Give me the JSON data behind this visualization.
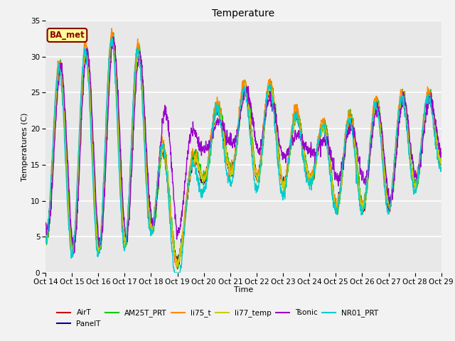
{
  "title": "Temperature",
  "xlabel": "Time",
  "ylabel": "Temperatures (C)",
  "ylim": [
    0,
    35
  ],
  "xlim": [
    0,
    15
  ],
  "x_tick_labels": [
    "Oct 14",
    "Oct 15",
    "Oct 16",
    "Oct 17",
    "Oct 18",
    "Oct 19",
    "Oct 20",
    "Oct 21",
    "Oct 22",
    "Oct 23",
    "Oct 24",
    "Oct 25",
    "Oct 26",
    "Oct 27",
    "Oct 28",
    "Oct 29"
  ],
  "series": {
    "AirT": {
      "color": "#cc0000",
      "lw": 1.0
    },
    "PanelT": {
      "color": "#000099",
      "lw": 1.0
    },
    "AM25T_PRT": {
      "color": "#00cc00",
      "lw": 1.0
    },
    "li75_t": {
      "color": "#ff8800",
      "lw": 1.0
    },
    "li77_temp": {
      "color": "#cccc00",
      "lw": 1.0
    },
    "Tsonic": {
      "color": "#9900cc",
      "lw": 1.0
    },
    "NR01_PRT": {
      "color": "#00cccc",
      "lw": 1.0
    }
  },
  "annotation_text": "BA_met",
  "annotation_color": "#8b0000",
  "annotation_bg": "#ffff99",
  "bg_color": "#e8e8e8",
  "plot_bg": "#e8e8e8",
  "grid_color": "#ffffff",
  "title_fontsize": 10,
  "label_fontsize": 8,
  "tick_fontsize": 7.5,
  "fig_bg": "#f2f2f2",
  "yticks": [
    0,
    5,
    10,
    15,
    20,
    25,
    30,
    35
  ]
}
